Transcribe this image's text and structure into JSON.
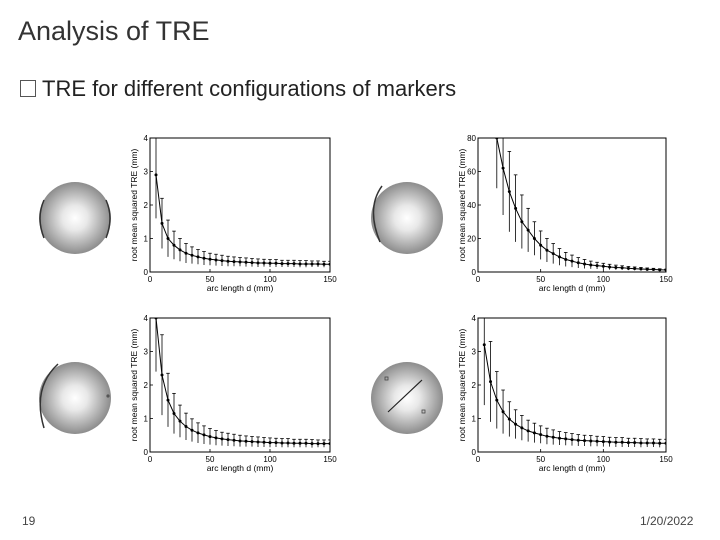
{
  "slide": {
    "title": "Analysis of TRE",
    "bullet": "TRE for different configurations of markers",
    "page_number": "19",
    "date": "1/20/2022"
  },
  "chart_data": [
    {
      "type": "line",
      "xlabel": "arc length d (mm)",
      "ylabel": "root mean squared TRE (mm)",
      "xlim": [
        0,
        150
      ],
      "ylim": [
        0,
        4
      ],
      "xticks": [
        0,
        50,
        100,
        150
      ],
      "yticks": [
        0,
        1,
        2,
        3,
        4
      ],
      "x": [
        5,
        10,
        15,
        20,
        25,
        30,
        35,
        40,
        45,
        50,
        55,
        60,
        65,
        70,
        75,
        80,
        85,
        90,
        95,
        100,
        105,
        110,
        115,
        120,
        125,
        130,
        135,
        140,
        145,
        150
      ],
      "values": [
        2.9,
        1.45,
        1.0,
        0.8,
        0.66,
        0.56,
        0.5,
        0.45,
        0.41,
        0.38,
        0.36,
        0.34,
        0.32,
        0.31,
        0.3,
        0.29,
        0.28,
        0.27,
        0.27,
        0.26,
        0.26,
        0.25,
        0.25,
        0.25,
        0.24,
        0.24,
        0.24,
        0.24,
        0.23,
        0.23
      ],
      "errors": [
        1.3,
        0.75,
        0.55,
        0.42,
        0.34,
        0.29,
        0.25,
        0.22,
        0.2,
        0.18,
        0.17,
        0.16,
        0.15,
        0.14,
        0.13,
        0.13,
        0.12,
        0.12,
        0.11,
        0.11,
        0.11,
        0.1,
        0.1,
        0.1,
        0.1,
        0.1,
        0.09,
        0.09,
        0.09,
        0.09
      ]
    },
    {
      "type": "line",
      "xlabel": "arc length d (mm)",
      "ylabel": "root mean squared TRE (mm)",
      "xlim": [
        0,
        150
      ],
      "ylim": [
        0,
        80
      ],
      "xticks": [
        0,
        50,
        100,
        150
      ],
      "yticks": [
        0,
        20,
        40,
        60,
        80
      ],
      "x": [
        15,
        20,
        25,
        30,
        35,
        40,
        45,
        50,
        55,
        60,
        65,
        70,
        75,
        80,
        85,
        90,
        95,
        100,
        105,
        110,
        115,
        120,
        125,
        130,
        135,
        140,
        145,
        150
      ],
      "values": [
        80,
        62,
        48,
        38,
        30,
        25,
        20,
        16,
        13,
        11,
        9,
        7.5,
        6.5,
        5.5,
        4.8,
        4.2,
        3.8,
        3.4,
        3.0,
        2.7,
        2.5,
        2.2,
        2.0,
        1.8,
        1.6,
        1.5,
        1.3,
        1.2
      ],
      "errors": [
        30,
        28,
        24,
        20,
        16,
        13,
        10,
        8.5,
        7,
        6,
        5,
        4.2,
        3.6,
        3.1,
        2.7,
        2.3,
        2.0,
        1.8,
        1.6,
        1.4,
        1.2,
        1.1,
        1.0,
        0.9,
        0.8,
        0.7,
        0.6,
        0.5
      ]
    },
    {
      "type": "line",
      "xlabel": "arc length d (mm)",
      "ylabel": "root mean squared TRE (mm)",
      "xlim": [
        0,
        150
      ],
      "ylim": [
        0,
        4
      ],
      "xticks": [
        0,
        50,
        100,
        150
      ],
      "yticks": [
        0,
        1,
        2,
        3,
        4
      ],
      "x": [
        5,
        10,
        15,
        20,
        25,
        30,
        35,
        40,
        45,
        50,
        55,
        60,
        65,
        70,
        75,
        80,
        85,
        90,
        95,
        100,
        105,
        110,
        115,
        120,
        125,
        130,
        135,
        140,
        145,
        150
      ],
      "values": [
        4.0,
        2.3,
        1.55,
        1.15,
        0.92,
        0.76,
        0.65,
        0.57,
        0.51,
        0.46,
        0.42,
        0.39,
        0.37,
        0.35,
        0.33,
        0.32,
        0.31,
        0.3,
        0.29,
        0.28,
        0.28,
        0.27,
        0.27,
        0.26,
        0.26,
        0.26,
        0.25,
        0.25,
        0.25,
        0.25
      ],
      "errors": [
        1.6,
        1.2,
        0.8,
        0.6,
        0.48,
        0.4,
        0.34,
        0.3,
        0.27,
        0.24,
        0.22,
        0.2,
        0.19,
        0.18,
        0.17,
        0.16,
        0.15,
        0.15,
        0.14,
        0.14,
        0.13,
        0.13,
        0.13,
        0.12,
        0.12,
        0.12,
        0.12,
        0.11,
        0.11,
        0.11
      ]
    },
    {
      "type": "line",
      "xlabel": "arc length d (mm)",
      "ylabel": "root mean squared TRE (mm)",
      "xlim": [
        0,
        150
      ],
      "ylim": [
        0,
        4
      ],
      "xticks": [
        0,
        50,
        100,
        150
      ],
      "yticks": [
        0,
        1,
        2,
        3,
        4
      ],
      "x": [
        5,
        10,
        15,
        20,
        25,
        30,
        35,
        40,
        45,
        50,
        55,
        60,
        65,
        70,
        75,
        80,
        85,
        90,
        95,
        100,
        105,
        110,
        115,
        120,
        125,
        130,
        135,
        140,
        145,
        150
      ],
      "values": [
        3.2,
        2.1,
        1.55,
        1.2,
        0.98,
        0.83,
        0.72,
        0.63,
        0.57,
        0.52,
        0.47,
        0.44,
        0.41,
        0.39,
        0.37,
        0.35,
        0.34,
        0.33,
        0.32,
        0.31,
        0.3,
        0.29,
        0.29,
        0.28,
        0.28,
        0.27,
        0.27,
        0.27,
        0.26,
        0.26
      ],
      "errors": [
        1.8,
        1.2,
        0.85,
        0.65,
        0.52,
        0.43,
        0.37,
        0.32,
        0.29,
        0.26,
        0.24,
        0.22,
        0.2,
        0.19,
        0.18,
        0.17,
        0.16,
        0.16,
        0.15,
        0.15,
        0.14,
        0.14,
        0.14,
        0.13,
        0.13,
        0.13,
        0.12,
        0.12,
        0.12,
        0.12
      ]
    }
  ]
}
